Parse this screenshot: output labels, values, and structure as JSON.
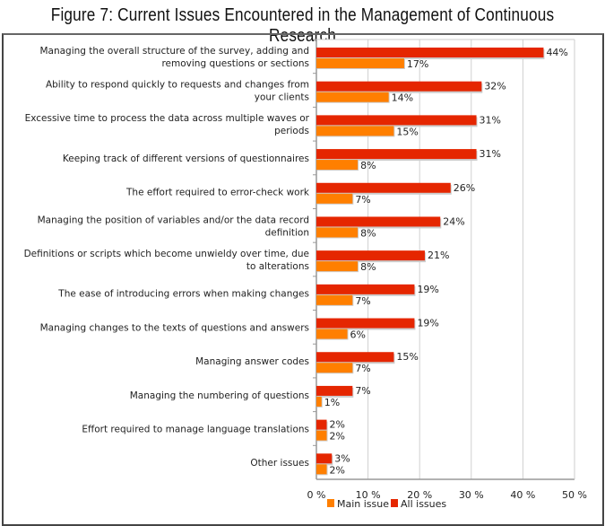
{
  "chart_data": {
    "type": "bar",
    "orientation": "horizontal",
    "title": "Figure 7: Current Issues Encountered in the Management of Continuous Research",
    "categories": [
      [
        "Managing the overall structure of the survey, adding and",
        "removing questions or sections"
      ],
      [
        "Ability to respond quickly to requests and changes from",
        "your clients"
      ],
      [
        "Excessive time to process the data across multiple waves or",
        "periods"
      ],
      [
        "Keeping track of different versions of questionnaires"
      ],
      [
        "The effort required to error-check work"
      ],
      [
        "Managing the position of variables and/or the data record",
        "definition"
      ],
      [
        "Definitions or scripts which become unwieldy over time, due",
        "to alterations"
      ],
      [
        "The ease of introducing errors when making changes"
      ],
      [
        "Managing changes to the texts of questions and answers"
      ],
      [
        "Managing answer codes"
      ],
      [
        "Managing the numbering of questions"
      ],
      [
        "Effort required to manage language translations"
      ],
      [
        "Other issues"
      ]
    ],
    "series": [
      {
        "name": "All issues",
        "color": "#e52600",
        "values": [
          44,
          32,
          31,
          31,
          26,
          24,
          21,
          19,
          19,
          15,
          7,
          2,
          3
        ]
      },
      {
        "name": "Main issue",
        "color": "#ff7f00",
        "values": [
          17,
          14,
          15,
          8,
          7,
          8,
          8,
          7,
          6,
          7,
          1,
          2,
          2
        ]
      }
    ],
    "xlim": [
      0,
      50
    ],
    "xticks": [
      "0 %",
      "10 %",
      "20 %",
      "30 %",
      "40 %",
      "50 %"
    ],
    "xtick_values": [
      0,
      10,
      20,
      30,
      40,
      50
    ],
    "value_suffix": "%",
    "grid": true,
    "legend": {
      "placement": "bottom",
      "entries": [
        "Main issue",
        "All issues"
      ]
    }
  }
}
